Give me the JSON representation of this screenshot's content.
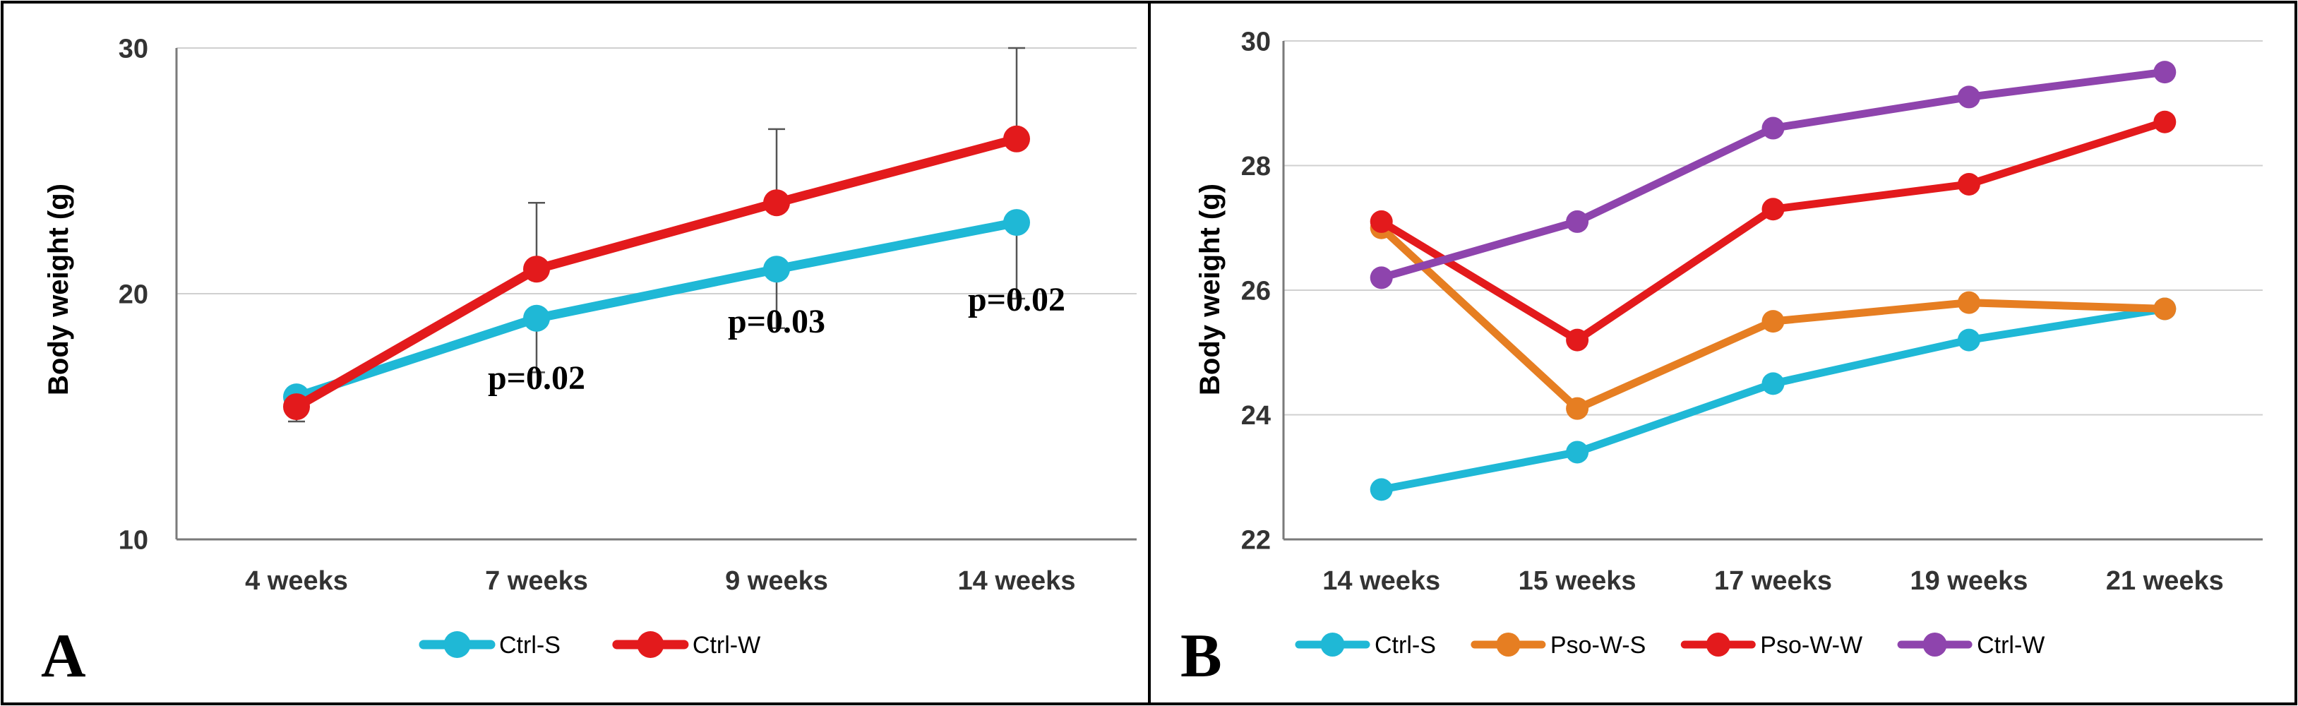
{
  "chart_data": [
    {
      "type": "line",
      "panel_label": "A",
      "title": "",
      "xlabel": "",
      "ylabel": "Body weight (g)",
      "ylim": [
        10,
        30
      ],
      "yticks": [
        10,
        20,
        30
      ],
      "grid": true,
      "legend_position": "bottom",
      "categories": [
        "4 weeks",
        "7 weeks",
        "9 weeks",
        "14 weeks"
      ],
      "series": [
        {
          "name": "Ctrl-S",
          "color": "#1fb8d6",
          "values": [
            15.8,
            19.0,
            21.0,
            22.9
          ],
          "error": [
            1.0,
            2.2,
            2.4,
            3.1
          ],
          "error_direction": "down"
        },
        {
          "name": "Ctrl-W",
          "color": "#e31a1c",
          "values": [
            15.4,
            21.0,
            23.7,
            26.3
          ],
          "error": [
            0.5,
            2.7,
            3.0,
            3.7
          ],
          "error_direction": "up"
        }
      ],
      "annotations": [
        {
          "text": "p=0.02",
          "category": "7 weeks",
          "y": 16.6
        },
        {
          "text": "p=0.03",
          "category": "9 weeks",
          "y": 18.9
        },
        {
          "text": "p=0.02",
          "category": "14 weeks",
          "y": 19.8
        }
      ]
    },
    {
      "type": "line",
      "panel_label": "B",
      "title": "",
      "xlabel": "",
      "ylabel": "Body weight (g)",
      "ylim": [
        22,
        30
      ],
      "yticks": [
        22,
        24,
        26,
        28,
        30
      ],
      "grid": true,
      "legend_position": "bottom",
      "categories": [
        "14 weeks",
        "15 weeks",
        "17 weeks",
        "19 weeks",
        "21 weeks"
      ],
      "series": [
        {
          "name": "Ctrl-S",
          "color": "#1fb8d6",
          "values": [
            22.8,
            23.4,
            24.5,
            25.2,
            25.7
          ]
        },
        {
          "name": "Pso-W-S",
          "color": "#e67e22",
          "values": [
            27.0,
            24.1,
            25.5,
            25.8,
            25.7
          ]
        },
        {
          "name": "Pso-W-W",
          "color": "#e31a1c",
          "values": [
            27.1,
            25.2,
            27.3,
            27.7,
            28.7
          ]
        },
        {
          "name": "Ctrl-W",
          "color": "#8e44ad",
          "values": [
            26.2,
            27.1,
            28.6,
            29.1,
            29.5
          ]
        }
      ]
    }
  ]
}
